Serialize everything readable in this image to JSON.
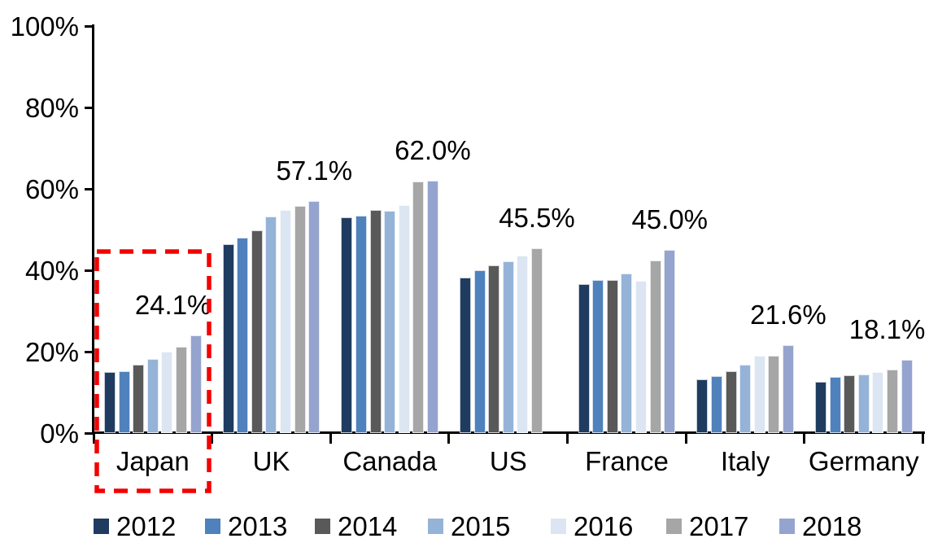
{
  "chart_data": {
    "type": "bar",
    "title": "",
    "xlabel": "",
    "ylabel": "",
    "categories": [
      "Japan",
      "UK",
      "Canada",
      "US",
      "France",
      "Italy",
      "Germany"
    ],
    "series": [
      {
        "name": "2012",
        "color": "#1F3B60",
        "values": [
          15.0,
          46.4,
          53.0,
          38.3,
          36.7,
          13.3,
          12.6
        ]
      },
      {
        "name": "2013",
        "color": "#4F81BD",
        "values": [
          15.3,
          48.0,
          53.4,
          40.1,
          37.7,
          14.1,
          13.8
        ]
      },
      {
        "name": "2014",
        "color": "#595959",
        "values": [
          16.9,
          49.8,
          54.9,
          41.3,
          37.7,
          15.3,
          14.2
        ]
      },
      {
        "name": "2015",
        "color": "#95B3D7",
        "values": [
          18.3,
          53.2,
          54.7,
          42.2,
          39.3,
          16.8,
          14.5
        ]
      },
      {
        "name": "2016",
        "color": "#DCE6F2",
        "values": [
          20.1,
          54.8,
          56.1,
          43.7,
          37.5,
          19.0,
          15.1
        ]
      },
      {
        "name": "2017",
        "color": "#A6A6A6",
        "values": [
          21.3,
          55.9,
          61.8,
          45.5,
          42.5,
          19.1,
          15.7
        ]
      },
      {
        "name": "2018",
        "color": "#95A4CE",
        "values": [
          24.1,
          57.1,
          62.0,
          null,
          45.0,
          21.6,
          18.1
        ]
      }
    ],
    "annotations": [
      {
        "category": "Japan",
        "text": "24.1%",
        "value": 24.1
      },
      {
        "category": "UK",
        "text": "57.1%",
        "value": 57.1
      },
      {
        "category": "Canada",
        "text": "62.0%",
        "value": 62.0
      },
      {
        "category": "US",
        "text": "45.5%",
        "value": 45.5
      },
      {
        "category": "France",
        "text": "45.0%",
        "value": 45.0
      },
      {
        "category": "Italy",
        "text": "21.6%",
        "value": 21.6
      },
      {
        "category": "Germany",
        "text": "18.1%",
        "value": 18.1
      }
    ],
    "y_axis": {
      "min": 0,
      "max": 100,
      "tick_labels": [
        "0%",
        "20%",
        "40%",
        "60%",
        "80%",
        "100%"
      ],
      "tick_values": [
        0,
        20,
        40,
        60,
        80,
        100
      ],
      "grid": false
    },
    "legend": {
      "position": "bottom",
      "entries": [
        "2012",
        "2013",
        "2014",
        "2015",
        "2016",
        "2017",
        "2018"
      ]
    },
    "highlight_box": {
      "target": "Japan",
      "color": "#F40000",
      "style": "dashed"
    }
  }
}
